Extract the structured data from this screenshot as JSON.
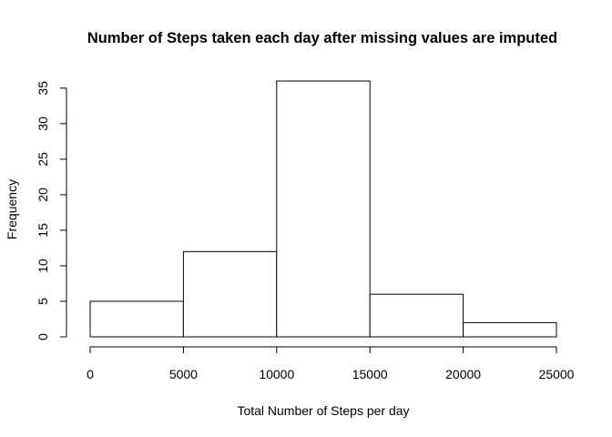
{
  "chart_data": {
    "type": "bar",
    "title": "Number of Steps taken each day after missing values are imputed",
    "xlabel": "Total Number of Steps per day",
    "ylabel": "Frequency",
    "bins": [
      {
        "start": 0,
        "end": 5000,
        "count": 5
      },
      {
        "start": 5000,
        "end": 10000,
        "count": 12
      },
      {
        "start": 10000,
        "end": 15000,
        "count": 36
      },
      {
        "start": 15000,
        "end": 20000,
        "count": 6
      },
      {
        "start": 20000,
        "end": 25000,
        "count": 2
      }
    ],
    "xlim": [
      0,
      25000
    ],
    "ylim": [
      0,
      36
    ],
    "x_ticks": [
      0,
      5000,
      10000,
      15000,
      20000,
      25000
    ],
    "y_ticks": [
      0,
      5,
      10,
      15,
      20,
      25,
      30,
      35
    ],
    "grid": false,
    "legend": "none"
  }
}
